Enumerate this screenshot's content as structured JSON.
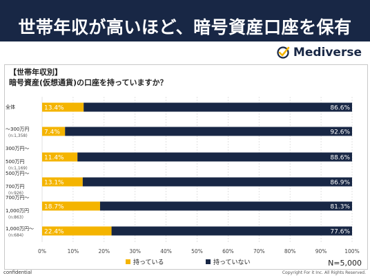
{
  "header": {
    "headline": "世帯年収が高いほど、暗号資産口座を保有"
  },
  "brand": {
    "name": "Mediverse",
    "accent_color": "#F4B400",
    "navy_color": "#182745"
  },
  "footer": {
    "left": "confidential",
    "right": "Copyright For it Inc. All Rights Reserved."
  },
  "chart_data": {
    "type": "bar",
    "orientation": "horizontal",
    "stacked": true,
    "title": "【世帯年収別】",
    "subtitle": "暗号資産(仮想通貨)の口座を持っていますか？",
    "categories": [
      {
        "line1": "全体",
        "line2": "",
        "n": ""
      },
      {
        "line1": "～300万円",
        "line2": "",
        "n": "(n:1,358)"
      },
      {
        "line1": "300万円～",
        "line2": "500万円",
        "n": "(n:1,169)"
      },
      {
        "line1": "500万円～",
        "line2": "700万円",
        "n": "(n:926)"
      },
      {
        "line1": "700万円～",
        "line2": "1,000万円",
        "n": "(n:863)"
      },
      {
        "line1": "1,000万円～",
        "line2": "",
        "n": "(n:684)"
      }
    ],
    "series": [
      {
        "name": "持っている",
        "color": "#F4B400",
        "values": [
          13.4,
          7.4,
          11.4,
          13.1,
          18.7,
          22.4
        ],
        "labels": [
          "13.4%",
          "7.4%",
          "11.4%",
          "13.1%",
          "18.7%",
          "22.4%"
        ]
      },
      {
        "name": "持っていない",
        "color": "#182745",
        "values": [
          86.6,
          92.6,
          88.6,
          86.9,
          81.3,
          77.6
        ],
        "labels": [
          "86.6%",
          "92.6%",
          "88.6%",
          "86.9%",
          "81.3%",
          "77.6%"
        ]
      }
    ],
    "xlim": [
      0,
      100
    ],
    "xticks": [
      "0%",
      "10%",
      "20%",
      "30%",
      "40%",
      "50%",
      "60%",
      "70%",
      "80%",
      "90%",
      "100%"
    ],
    "grid": true,
    "legend_position": "bottom",
    "note": "N=5,000"
  }
}
